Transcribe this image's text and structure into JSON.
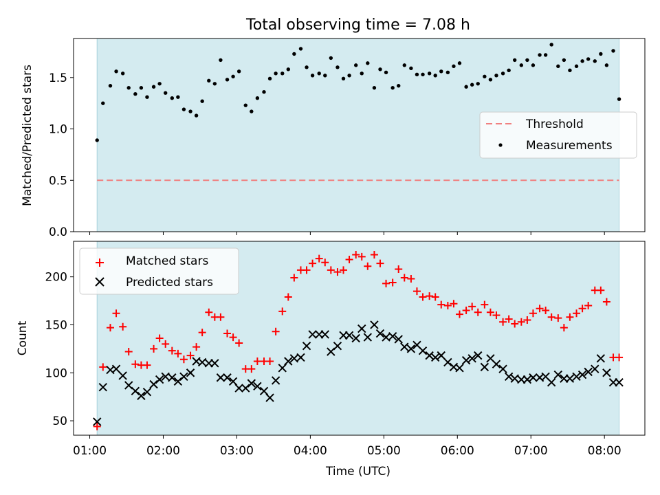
{
  "chart_data": {
    "title": "Total observing time = 7.08 h",
    "xlabel": "Time (UTC)",
    "x_tick_labels": [
      "01:00",
      "02:00",
      "03:00",
      "04:00",
      "05:00",
      "06:00",
      "07:00",
      "08:00"
    ],
    "x_range_hours": [
      0.78,
      8.55
    ],
    "observing_window_hours": [
      1.1,
      8.2
    ],
    "shade_color": "#d4ebf0",
    "panels": [
      {
        "type": "scatter",
        "ylabel": "Matched/Predicted stars",
        "ylim": [
          0,
          1.88
        ],
        "y_ticks": [
          0.0,
          0.5,
          1.0,
          1.5
        ],
        "y_tick_labels": [
          "0.0",
          "0.5",
          "1.0",
          "1.5"
        ],
        "legend_position": "center-right",
        "threshold": {
          "name": "Threshold",
          "value": 0.5,
          "color": "#f08080",
          "style": "dashed"
        },
        "series": [
          {
            "name": "Measurements",
            "marker": "dot",
            "color": "#000000",
            "x": [
              1.1,
              1.18,
              1.28,
              1.36,
              1.45,
              1.53,
              1.62,
              1.7,
              1.78,
              1.87,
              1.95,
              2.03,
              2.12,
              2.2,
              2.28,
              2.37,
              2.45,
              2.53,
              2.62,
              2.7,
              2.78,
              2.87,
              2.95,
              3.03,
              3.12,
              3.2,
              3.28,
              3.37,
              3.45,
              3.53,
              3.62,
              3.7,
              3.78,
              3.87,
              3.95,
              4.03,
              4.12,
              4.2,
              4.28,
              4.37,
              4.45,
              4.53,
              4.62,
              4.7,
              4.78,
              4.87,
              4.95,
              5.03,
              5.12,
              5.2,
              5.28,
              5.37,
              5.45,
              5.53,
              5.62,
              5.7,
              5.78,
              5.87,
              5.95,
              6.03,
              6.12,
              6.2,
              6.28,
              6.37,
              6.45,
              6.53,
              6.62,
              6.7,
              6.78,
              6.87,
              6.95,
              7.03,
              7.12,
              7.2,
              7.28,
              7.37,
              7.45,
              7.53,
              7.62,
              7.7,
              7.78,
              7.87,
              7.95,
              8.03,
              8.12,
              8.2
            ],
            "y": [
              0.89,
              1.25,
              1.42,
              1.56,
              1.54,
              1.4,
              1.34,
              1.4,
              1.31,
              1.41,
              1.44,
              1.35,
              1.3,
              1.31,
              1.19,
              1.17,
              1.13,
              1.27,
              1.47,
              1.44,
              1.67,
              1.48,
              1.51,
              1.56,
              1.23,
              1.17,
              1.3,
              1.36,
              1.49,
              1.54,
              1.54,
              1.58,
              1.73,
              1.78,
              1.6,
              1.52,
              1.54,
              1.52,
              1.69,
              1.6,
              1.49,
              1.52,
              1.62,
              1.54,
              1.64,
              1.4,
              1.58,
              1.55,
              1.4,
              1.42,
              1.62,
              1.59,
              1.53,
              1.53,
              1.54,
              1.52,
              1.56,
              1.55,
              1.61,
              1.64,
              1.41,
              1.43,
              1.44,
              1.51,
              1.48,
              1.52,
              1.54,
              1.57,
              1.67,
              1.62,
              1.67,
              1.62,
              1.72,
              1.72,
              1.82,
              1.61,
              1.67,
              1.57,
              1.61,
              1.66,
              1.68,
              1.66,
              1.73,
              1.62,
              1.76,
              1.29
            ]
          }
        ]
      },
      {
        "type": "scatter",
        "ylabel": "Count",
        "ylim": [
          35,
          237
        ],
        "y_ticks": [
          50,
          100,
          150,
          200
        ],
        "y_tick_labels": [
          "50",
          "100",
          "150",
          "200"
        ],
        "legend_position": "upper-left",
        "series": [
          {
            "name": "Matched stars",
            "marker": "plus",
            "color": "#ff0000",
            "x": [
              1.1,
              1.18,
              1.28,
              1.36,
              1.45,
              1.53,
              1.62,
              1.7,
              1.78,
              1.87,
              1.95,
              2.03,
              2.12,
              2.2,
              2.28,
              2.37,
              2.45,
              2.53,
              2.62,
              2.7,
              2.78,
              2.87,
              2.95,
              3.03,
              3.12,
              3.2,
              3.28,
              3.37,
              3.45,
              3.53,
              3.62,
              3.7,
              3.78,
              3.87,
              3.95,
              4.03,
              4.12,
              4.2,
              4.28,
              4.37,
              4.45,
              4.53,
              4.62,
              4.7,
              4.78,
              4.87,
              4.95,
              5.03,
              5.12,
              5.2,
              5.28,
              5.37,
              5.45,
              5.53,
              5.62,
              5.7,
              5.78,
              5.87,
              5.95,
              6.03,
              6.12,
              6.2,
              6.28,
              6.37,
              6.45,
              6.53,
              6.62,
              6.7,
              6.78,
              6.87,
              6.95,
              7.03,
              7.12,
              7.2,
              7.28,
              7.37,
              7.45,
              7.53,
              7.62,
              7.7,
              7.78,
              7.87,
              7.95,
              8.03,
              8.12,
              8.2
            ],
            "y": [
              44,
              106,
              147,
              162,
              148,
              122,
              109,
              108,
              108,
              125,
              136,
              130,
              123,
              120,
              114,
              118,
              127,
              142,
              163,
              158,
              158,
              141,
              137,
              131,
              104,
              104,
              112,
              112,
              112,
              143,
              164,
              179,
              199,
              207,
              207,
              214,
              219,
              215,
              207,
              205,
              207,
              218,
              223,
              221,
              211,
              223,
              214,
              193,
              194,
              208,
              199,
              198,
              185,
              179,
              180,
              179,
              171,
              170,
              172,
              161,
              165,
              169,
              163,
              171,
              163,
              160,
              153,
              156,
              151,
              153,
              155,
              162,
              167,
              165,
              158,
              157,
              147,
              158,
              162,
              167,
              170,
              186,
              186,
              174,
              116,
              116
            ]
          },
          {
            "name": "Predicted stars",
            "marker": "x",
            "color": "#000000",
            "x": [
              1.1,
              1.18,
              1.28,
              1.36,
              1.45,
              1.53,
              1.62,
              1.7,
              1.78,
              1.87,
              1.95,
              2.03,
              2.12,
              2.2,
              2.28,
              2.37,
              2.45,
              2.53,
              2.62,
              2.7,
              2.78,
              2.87,
              2.95,
              3.03,
              3.12,
              3.2,
              3.28,
              3.37,
              3.45,
              3.53,
              3.62,
              3.7,
              3.78,
              3.87,
              3.95,
              4.03,
              4.12,
              4.2,
              4.28,
              4.37,
              4.45,
              4.53,
              4.62,
              4.7,
              4.78,
              4.87,
              4.95,
              5.03,
              5.12,
              5.2,
              5.28,
              5.37,
              5.45,
              5.53,
              5.62,
              5.7,
              5.78,
              5.87,
              5.95,
              6.03,
              6.12,
              6.2,
              6.28,
              6.37,
              6.45,
              6.53,
              6.62,
              6.7,
              6.78,
              6.87,
              6.95,
              7.03,
              7.12,
              7.2,
              7.28,
              7.37,
              7.45,
              7.53,
              7.62,
              7.7,
              7.78,
              7.87,
              7.95,
              8.03,
              8.12,
              8.2
            ],
            "y": [
              49,
              85,
              103,
              104,
              97,
              87,
              81,
              76,
              80,
              88,
              93,
              96,
              95,
              91,
              96,
              100,
              112,
              111,
              110,
              110,
              95,
              95,
              91,
              84,
              84,
              89,
              86,
              81,
              74,
              92,
              105,
              112,
              115,
              116,
              128,
              140,
              140,
              140,
              122,
              128,
              139,
              139,
              136,
              146,
              137,
              150,
              141,
              137,
              138,
              135,
              127,
              125,
              129,
              123,
              118,
              116,
              118,
              111,
              106,
              105,
              113,
              115,
              118,
              106,
              115,
              109,
              104,
              96,
              94,
              93,
              93,
              95,
              95,
              96,
              90,
              98,
              94,
              94,
              96,
              98,
              101,
              104,
              115,
              100,
              90,
              90
            ]
          }
        ]
      }
    ]
  }
}
